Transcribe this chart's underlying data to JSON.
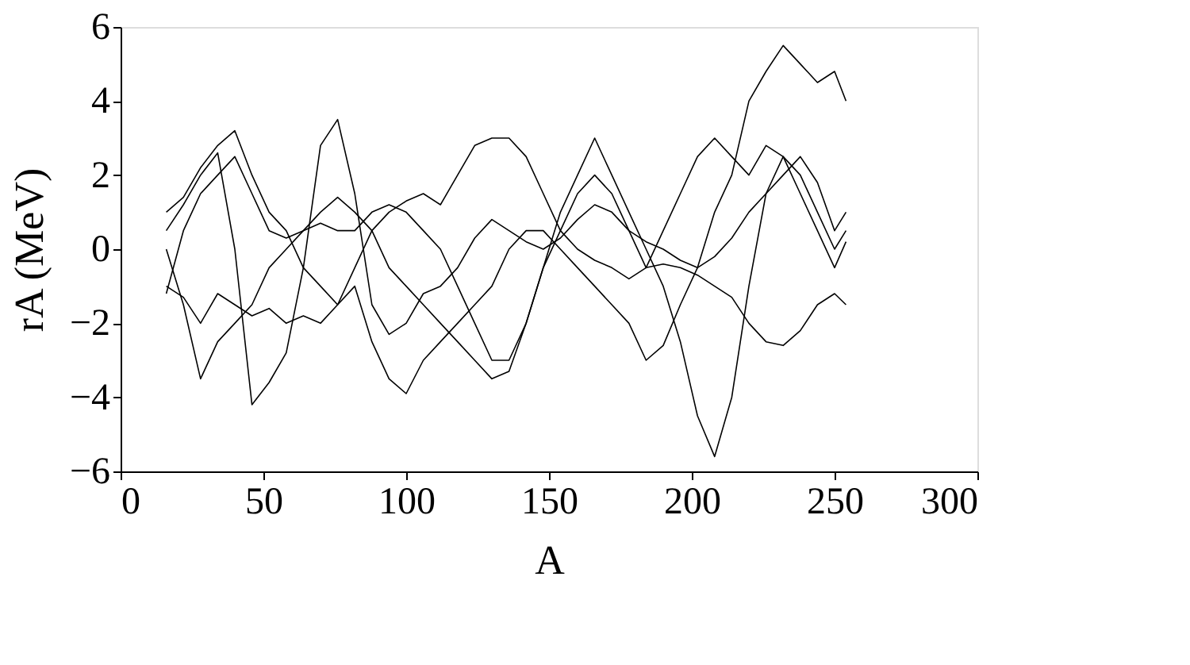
{
  "chart_data": {
    "type": "line",
    "xlabel": "A",
    "ylabel": "rA  (MeV)",
    "x": [
      16,
      22,
      28,
      34,
      40,
      46,
      52,
      58,
      64,
      70,
      76,
      82,
      88,
      94,
      100,
      106,
      112,
      118,
      124,
      130,
      136,
      142,
      148,
      154,
      160,
      166,
      172,
      178,
      184,
      190,
      196,
      202,
      208,
      214,
      220,
      226,
      232,
      238,
      244,
      250,
      254
    ],
    "series": [
      {
        "color": "#000000",
        "values": [
          0.5,
          1.2,
          2,
          2.6,
          0,
          -4.2,
          -3.6,
          -2.8,
          -0.5,
          2.8,
          3.5,
          1.5,
          -1.5,
          -2.3,
          -2,
          -1.2,
          -1,
          -0.5,
          0.3,
          0.8,
          0.5,
          0.2,
          0,
          0.3,
          0.8,
          1.2,
          1,
          0.5,
          0.2,
          0,
          -0.3,
          -0.5,
          -0.2,
          0.3,
          1,
          1.5,
          2,
          2.5,
          1.8,
          0.5,
          1
        ]
      },
      {
        "color": "#000000",
        "values": [
          -1,
          -1.3,
          -2,
          -1.2,
          -1.5,
          -1.8,
          -1.6,
          -2,
          -1.8,
          -2,
          -1.5,
          -1,
          -2.5,
          -3.5,
          -3.9,
          -3,
          -2.5,
          -2,
          -1.5,
          -1,
          0,
          0.5,
          0.5,
          0,
          -0.5,
          -1,
          -1.5,
          -2,
          -3,
          -2.6,
          -1.5,
          -0.5,
          1,
          2,
          4,
          4.8,
          5.5,
          5,
          4.5,
          4.8,
          4
        ]
      },
      {
        "color": "#000000",
        "values": [
          1,
          1.4,
          2.2,
          2.8,
          3.2,
          2,
          1,
          0.5,
          -0.5,
          -1,
          -1.5,
          -0.5,
          0.5,
          1,
          1.3,
          1.5,
          1.2,
          2,
          2.8,
          3,
          3,
          2.5,
          1.5,
          0.5,
          0,
          -0.3,
          -0.5,
          -0.8,
          -0.5,
          -0.4,
          -0.5,
          -0.7,
          -1,
          -1.3,
          -2,
          -2.5,
          -2.6,
          -2.2,
          -1.5,
          -1.2,
          -1.5
        ]
      },
      {
        "color": "#000000",
        "values": [
          0,
          -1.5,
          -3.5,
          -2.5,
          -2,
          -1.5,
          -0.5,
          0,
          0.5,
          1,
          1.4,
          1,
          0.5,
          -0.5,
          -1,
          -1.5,
          -2,
          -2.5,
          -3,
          -3.5,
          -3.3,
          -2,
          -0.5,
          1,
          2,
          3,
          2,
          1,
          0,
          -1,
          -2.5,
          -4.5,
          -5.6,
          -4,
          -1,
          1.5,
          2.5,
          2,
          1,
          0,
          0.5
        ]
      },
      {
        "color": "#000000",
        "values": [
          -1.2,
          0.5,
          1.5,
          2,
          2.5,
          1.5,
          0.5,
          0.3,
          0.5,
          0.7,
          0.5,
          0.5,
          1,
          1.2,
          1,
          0.5,
          0,
          -1,
          -2,
          -3,
          -3,
          -2,
          -0.5,
          0.5,
          1.5,
          2,
          1.5,
          0.5,
          -0.5,
          0.5,
          1.5,
          2.5,
          3,
          2.5,
          2,
          2.8,
          2.5,
          1.5,
          0.5,
          -0.5,
          0.2
        ]
      }
    ],
    "xlim": [
      0,
      300
    ],
    "xticks": [
      0,
      50,
      100,
      150,
      200,
      250,
      300
    ],
    "ylim": [
      -6,
      6
    ],
    "yticks": [
      -6,
      -4,
      -2,
      0,
      2,
      4,
      6
    ],
    "grid": false,
    "legend": false,
    "marker": "none",
    "line_style": "solid"
  }
}
